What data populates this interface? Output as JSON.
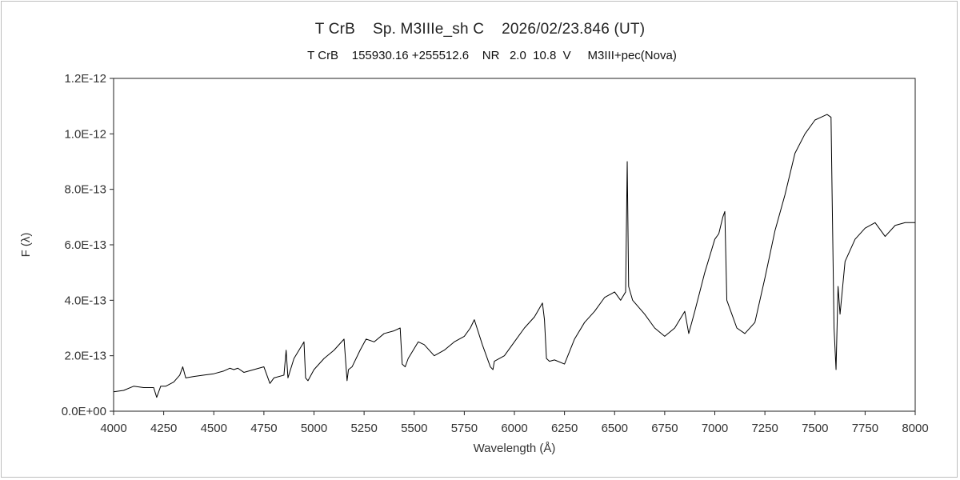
{
  "chart_data": {
    "type": "line",
    "title": "T CrB    Sp. M3IIIe_sh C    2026/02/23.846 (UT)",
    "subtitle": "T CrB    155930.16 +255512.6    NR   2.0  10.8  V     M3III+pec(Nova)",
    "xlabel": "Wavelength (Å)",
    "ylabel": "F (λ)",
    "xlim": [
      4000,
      8000
    ],
    "ylim": [
      0,
      1.2e-12
    ],
    "x_ticks": [
      4000,
      4250,
      4500,
      4750,
      5000,
      5250,
      5500,
      5750,
      6000,
      6250,
      6500,
      6750,
      7000,
      7250,
      7500,
      7750,
      8000
    ],
    "x_tick_labels": [
      "4000",
      "4250",
      "4500",
      "4750",
      "5000",
      "5250",
      "5500",
      "5750",
      "6000",
      "6250",
      "6500",
      "6750",
      "7000",
      "7250",
      "7500",
      "7750",
      "8000"
    ],
    "y_ticks": [
      0,
      2e-13,
      4e-13,
      6e-13,
      8e-13,
      1e-12,
      1.2e-12
    ],
    "y_tick_labels": [
      "0.0E+00",
      "2.0E-13",
      "4.0E-13",
      "6.0E-13",
      "8.0E-13",
      "1.0E-12",
      "1.2E-12"
    ],
    "grid": false,
    "line_color": "#000000",
    "series": [
      {
        "x": [
          4000,
          4050,
          4100,
          4150,
          4200,
          4215,
          4235,
          4260,
          4300,
          4330,
          4345,
          4360,
          4400,
          4450,
          4500,
          4550,
          4580,
          4600,
          4620,
          4650,
          4700,
          4750,
          4780,
          4800,
          4850,
          4861,
          4870,
          4900,
          4950,
          4958,
          4970,
          5000,
          5050,
          5100,
          5150,
          5165,
          5172,
          5190,
          5230,
          5260,
          5300,
          5350,
          5400,
          5430,
          5440,
          5455,
          5470,
          5520,
          5550,
          5600,
          5650,
          5700,
          5750,
          5780,
          5800,
          5840,
          5880,
          5893,
          5900,
          5950,
          6000,
          6050,
          6100,
          6140,
          6150,
          6160,
          6175,
          6200,
          6250,
          6300,
          6350,
          6400,
          6450,
          6500,
          6530,
          6555,
          6563,
          6570,
          6590,
          6650,
          6700,
          6750,
          6800,
          6850,
          6870,
          6900,
          6950,
          7000,
          7020,
          7040,
          7050,
          7060,
          7080,
          7110,
          7150,
          7200,
          7250,
          7300,
          7350,
          7400,
          7450,
          7500,
          7530,
          7560,
          7580,
          7585,
          7595,
          7605,
          7615,
          7625,
          7650,
          7700,
          7750,
          7800,
          7850,
          7900,
          7950,
          8000
        ],
        "values": [
          7e-14,
          7.5e-14,
          9e-14,
          8.5e-14,
          8.5e-14,
          5e-14,
          9e-14,
          9e-14,
          1.05e-13,
          1.3e-13,
          1.6e-13,
          1.2e-13,
          1.25e-13,
          1.3e-13,
          1.35e-13,
          1.45e-13,
          1.55e-13,
          1.5e-13,
          1.55e-13,
          1.4e-13,
          1.5e-13,
          1.6e-13,
          1e-13,
          1.2e-13,
          1.3e-13,
          2.2e-13,
          1.2e-13,
          1.9e-13,
          2.5e-13,
          1.2e-13,
          1.1e-13,
          1.5e-13,
          1.9e-13,
          2.2e-13,
          2.6e-13,
          1.1e-13,
          1.5e-13,
          1.6e-13,
          2.2e-13,
          2.6e-13,
          2.5e-13,
          2.8e-13,
          2.9e-13,
          3e-13,
          1.7e-13,
          1.6e-13,
          1.9e-13,
          2.5e-13,
          2.4e-13,
          2e-13,
          2.2e-13,
          2.5e-13,
          2.7e-13,
          3e-13,
          3.3e-13,
          2.4e-13,
          1.6e-13,
          1.5e-13,
          1.8e-13,
          2e-13,
          2.5e-13,
          3e-13,
          3.4e-13,
          3.9e-13,
          3.3e-13,
          1.9e-13,
          1.8e-13,
          1.85e-13,
          1.7e-13,
          2.6e-13,
          3.2e-13,
          3.6e-13,
          4.1e-13,
          4.3e-13,
          4e-13,
          4.3e-13,
          9e-13,
          4.5e-13,
          4e-13,
          3.5e-13,
          3e-13,
          2.7e-13,
          3e-13,
          3.6e-13,
          2.8e-13,
          3.6e-13,
          5e-13,
          6.2e-13,
          6.4e-13,
          7e-13,
          7.2e-13,
          4e-13,
          3.6e-13,
          3e-13,
          2.8e-13,
          3.2e-13,
          4.8e-13,
          6.5e-13,
          7.8e-13,
          9.3e-13,
          1e-12,
          1.05e-12,
          1.06e-12,
          1.07e-12,
          1.06e-12,
          8e-13,
          3e-13,
          1.5e-13,
          4.5e-13,
          3.5e-13,
          5.4e-13,
          6.2e-13,
          6.6e-13,
          6.8e-13,
          6.3e-13,
          6.7e-13,
          6.8e-13,
          6.8e-13
        ]
      }
    ]
  }
}
